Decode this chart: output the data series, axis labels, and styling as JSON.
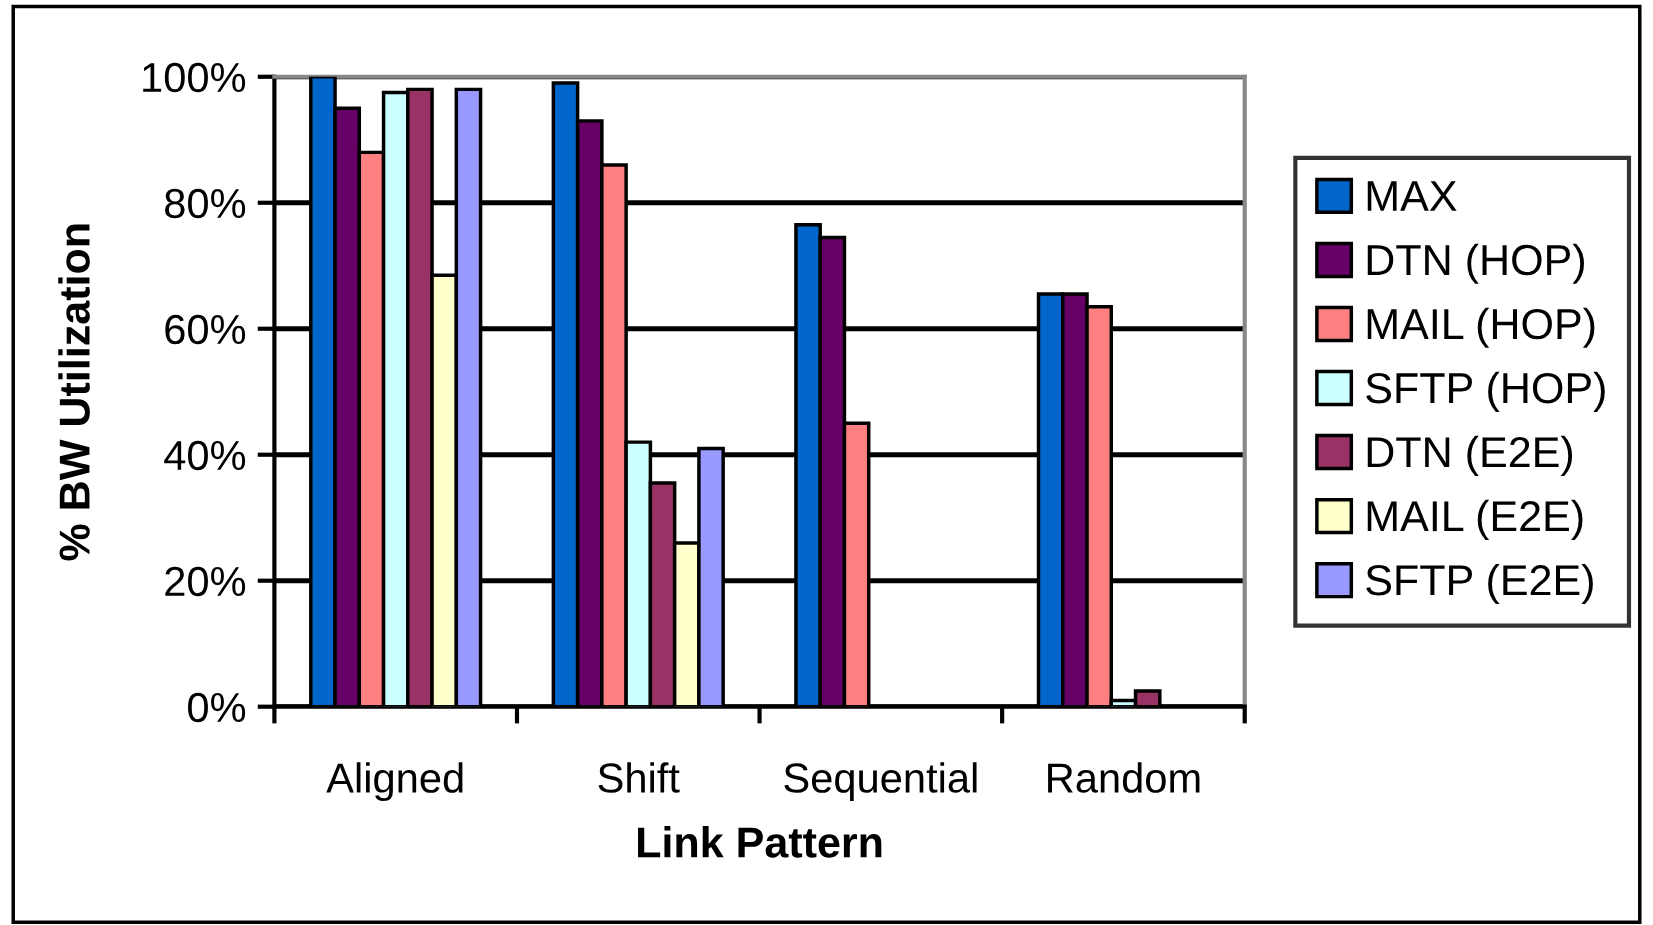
{
  "chart_data": {
    "type": "bar",
    "xlabel": "Link Pattern",
    "ylabel": "% BW Utilization",
    "categories": [
      "Aligned",
      "Shift",
      "Sequential",
      "Random"
    ],
    "series": [
      {
        "name": "MAX",
        "color": "#0066cc",
        "values": [
          100,
          99,
          76.5,
          65.5
        ]
      },
      {
        "name": "DTN (HOP)",
        "color": "#660066",
        "values": [
          95,
          93,
          74.5,
          65.5
        ]
      },
      {
        "name": "MAIL (HOP)",
        "color": "#ff8080",
        "values": [
          88,
          86,
          45,
          63.5
        ]
      },
      {
        "name": "SFTP (HOP)",
        "color": "#ccffff",
        "values": [
          97.5,
          42,
          null,
          1
        ]
      },
      {
        "name": "DTN (E2E)",
        "color": "#993366",
        "values": [
          98,
          35.5,
          null,
          2.5
        ]
      },
      {
        "name": "MAIL (E2E)",
        "color": "#ffffcc",
        "values": [
          68.5,
          26,
          null,
          null
        ]
      },
      {
        "name": "SFTP (E2E)",
        "color": "#9999ff",
        "values": [
          98,
          41,
          null,
          null
        ]
      }
    ],
    "ylim": [
      0,
      100
    ],
    "yticks": [
      {
        "value": 0,
        "label": "0%"
      },
      {
        "value": 20,
        "label": "20%"
      },
      {
        "value": 40,
        "label": "40%"
      },
      {
        "value": 60,
        "label": "60%"
      },
      {
        "value": 80,
        "label": "80%"
      },
      {
        "value": 100,
        "label": "100%"
      }
    ],
    "grid": "y",
    "legend": "right"
  }
}
